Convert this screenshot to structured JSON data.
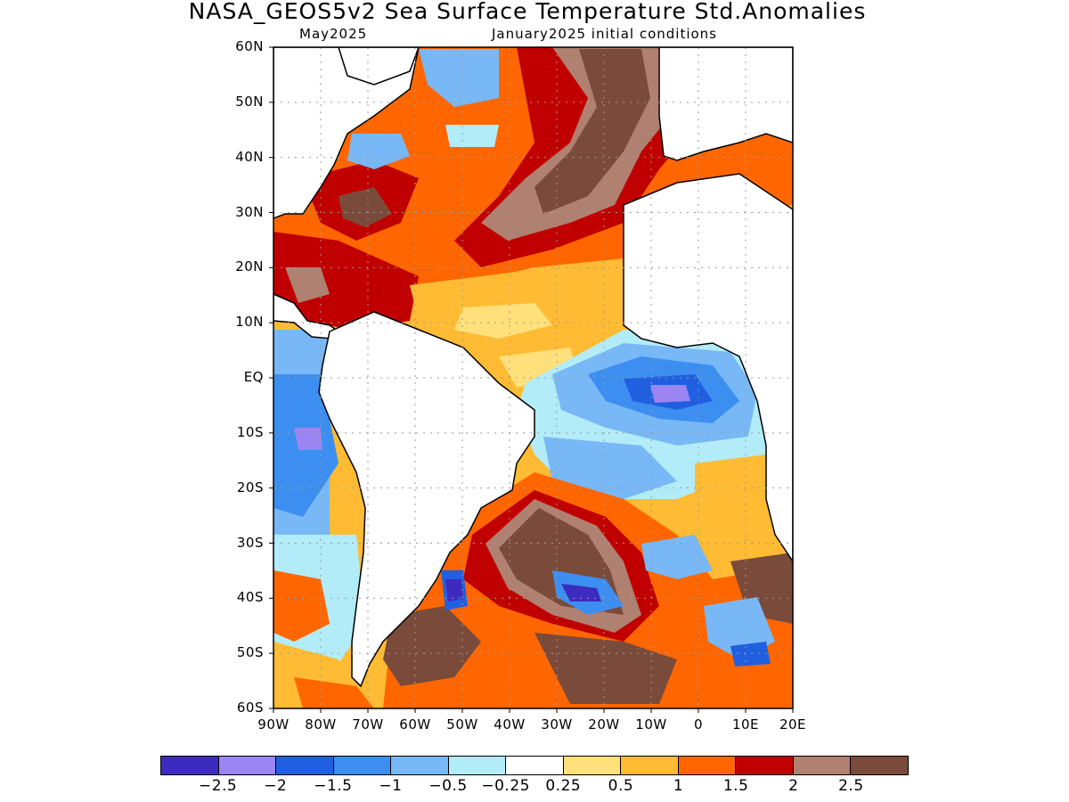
{
  "title": "NASA_GEOS5v2 Sea Surface Temperature Std.Anomalies",
  "subtitle_left": "May2025",
  "subtitle_right": "January2025 initial conditions",
  "lat_labels": [
    "60N",
    "50N",
    "40N",
    "30N",
    "20N",
    "10N",
    "EQ",
    "10S",
    "20S",
    "30S",
    "40S",
    "50S",
    "60S"
  ],
  "lon_labels": [
    "90W",
    "80W",
    "70W",
    "60W",
    "50W",
    "40W",
    "30W",
    "20W",
    "10W",
    "0",
    "10E",
    "20E"
  ],
  "colorbar": {
    "colors": [
      "#3d2bbf",
      "#9a85f2",
      "#2060e0",
      "#3c8ff0",
      "#78b8f6",
      "#b2ecf8",
      "#ffffff",
      "#ffe07a",
      "#ffbb33",
      "#ff6600",
      "#c00000",
      "#b08070",
      "#7a4a3a"
    ],
    "labels": [
      "−2.5",
      "−2",
      "−1.5",
      "−1",
      "−0.5",
      "−0.25",
      "0.25",
      "0.5",
      "1",
      "1.5",
      "2",
      "2.5"
    ]
  },
  "map_colors": {
    "land": "#ffffff",
    "coast": "#000000",
    "grid": "#9a9a9a"
  }
}
